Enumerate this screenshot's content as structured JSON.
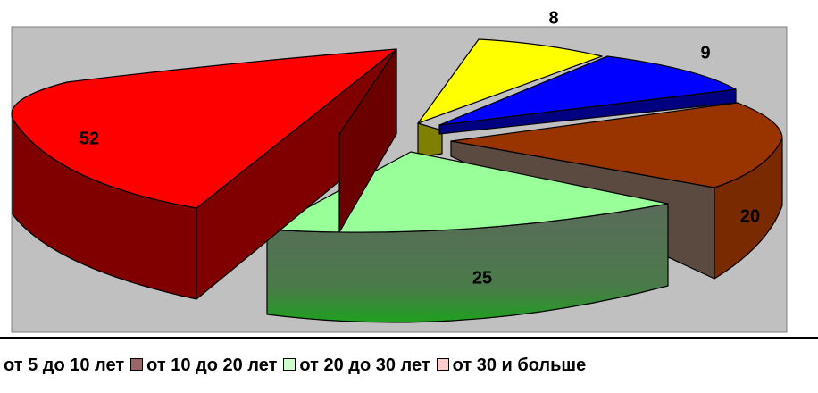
{
  "chart_data": {
    "type": "pie",
    "style": "3d-exploded",
    "slices": [
      {
        "label": "от 30 и больше",
        "value": 8,
        "color": "#ffff00",
        "side_color": "#808000"
      },
      {
        "label": "",
        "value": 9,
        "color": "#0000ff",
        "side_color": "#000080"
      },
      {
        "label": "от 10 до 20 лет",
        "value": 20,
        "color": "#993300",
        "side_color": "#5a4a3f"
      },
      {
        "label": "от 20 до 30 лет",
        "value": 25,
        "color": "#99ff99",
        "side_color": "#4a7a4a"
      },
      {
        "label": "от 5 до 10 лет",
        "value": 52,
        "color": "#ff0000",
        "side_color": "#800000"
      }
    ],
    "plot_background": "#c0c0c0",
    "legend": {
      "position": "bottom",
      "items": [
        {
          "label": "от 5 до 10 лет",
          "color": "#800000",
          "truncated_left": true
        },
        {
          "label": "от 10 до 20 лет",
          "color": "#996666"
        },
        {
          "label": "от 20 до 30 лет",
          "color": "#ccffcc"
        },
        {
          "label": "от 30 и больше",
          "color": "#ffcccc"
        }
      ]
    }
  }
}
